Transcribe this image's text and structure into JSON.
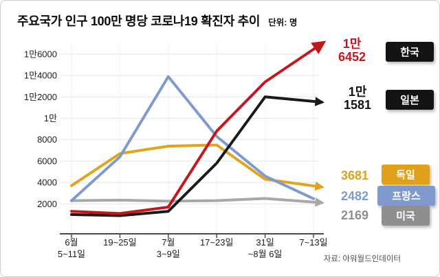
{
  "header": {
    "title": "주요국가 인구 100만 명당 코로나19 확진자 추이",
    "unit_label": "단위: 명"
  },
  "source": "자료: 아워월드인데이터",
  "chart_data": {
    "type": "line",
    "title": "주요국가 인구 100만 명당 코로나19 확진자 추이",
    "unit": "명",
    "categories": [
      "6월 5~11일",
      "6월 19~25일",
      "7월 3~9일",
      "7월 17~23일",
      "7월 31일~8월 6일",
      "8월 7~13일"
    ],
    "x_tick_labels": [
      {
        "line1": "6월",
        "line2": "5~11일"
      },
      {
        "line1": "19~25일",
        "line2": ""
      },
      {
        "line1": "7월",
        "line2": "3~9일"
      },
      {
        "line1": "17~23일",
        "line2": ""
      },
      {
        "line1": "31일",
        "line2": "~8월 6일"
      },
      {
        "line1": "7~13일",
        "line2": ""
      }
    ],
    "ylim": [
      0,
      17000
    ],
    "yticks": [
      2000,
      4000,
      6000,
      8000,
      10000,
      12000,
      14000,
      16000
    ],
    "ytick_labels": [
      "2000",
      "4000",
      "6000",
      "8000",
      "1만",
      "1만2000",
      "1만4000",
      "1만6000"
    ],
    "grid": true,
    "legend_position": "right",
    "series": [
      {
        "name": "미국",
        "color": "#a8a8a8",
        "values": [
          2300,
          2350,
          2250,
          2300,
          2500,
          2169
        ],
        "final_value": 2169,
        "arrow": "small"
      },
      {
        "name": "독일",
        "color": "#e2a41f",
        "values": [
          3700,
          6700,
          7400,
          7500,
          4300,
          3681
        ],
        "final_value": 3681,
        "arrow": "small"
      },
      {
        "name": "프랑스",
        "color": "#7f9bce",
        "values": [
          2300,
          6400,
          13900,
          8300,
          4600,
          2482
        ],
        "final_value": 2482,
        "arrow": "none"
      },
      {
        "name": "일본",
        "color": "#1a1a1a",
        "values": [
          1000,
          900,
          1300,
          5800,
          12000,
          11581
        ],
        "final_value": 11581,
        "arrow": "small"
      },
      {
        "name": "한국",
        "color": "#c4171d",
        "values": [
          1300,
          1100,
          1700,
          8800,
          13400,
          16452
        ],
        "final_value": 16452,
        "arrow": "large"
      }
    ]
  },
  "legend": [
    {
      "id": "korea",
      "value_line1": "1만",
      "value_line2": "6452",
      "chip": "한국",
      "value_color": "#c4171d",
      "chip_color": "#141414"
    },
    {
      "id": "japan",
      "value_line1": "1만",
      "value_line2": "1581",
      "chip": "일본",
      "value_color": "#141414",
      "chip_color": "#141414"
    },
    {
      "id": "germany",
      "value_line1": "3681",
      "value_line2": "",
      "chip": "독일",
      "value_color": "#dfa01a",
      "chip_color": "#dfa01a"
    },
    {
      "id": "france",
      "value_line1": "2482",
      "value_line2": "",
      "chip": "프랑스",
      "value_color": "#7f9bce",
      "chip_color": "#7f9bce"
    },
    {
      "id": "usa",
      "value_line1": "2169",
      "value_line2": "",
      "chip": "미국",
      "value_color": "#8f8f8f",
      "chip_color": "#8f8f8f"
    }
  ]
}
